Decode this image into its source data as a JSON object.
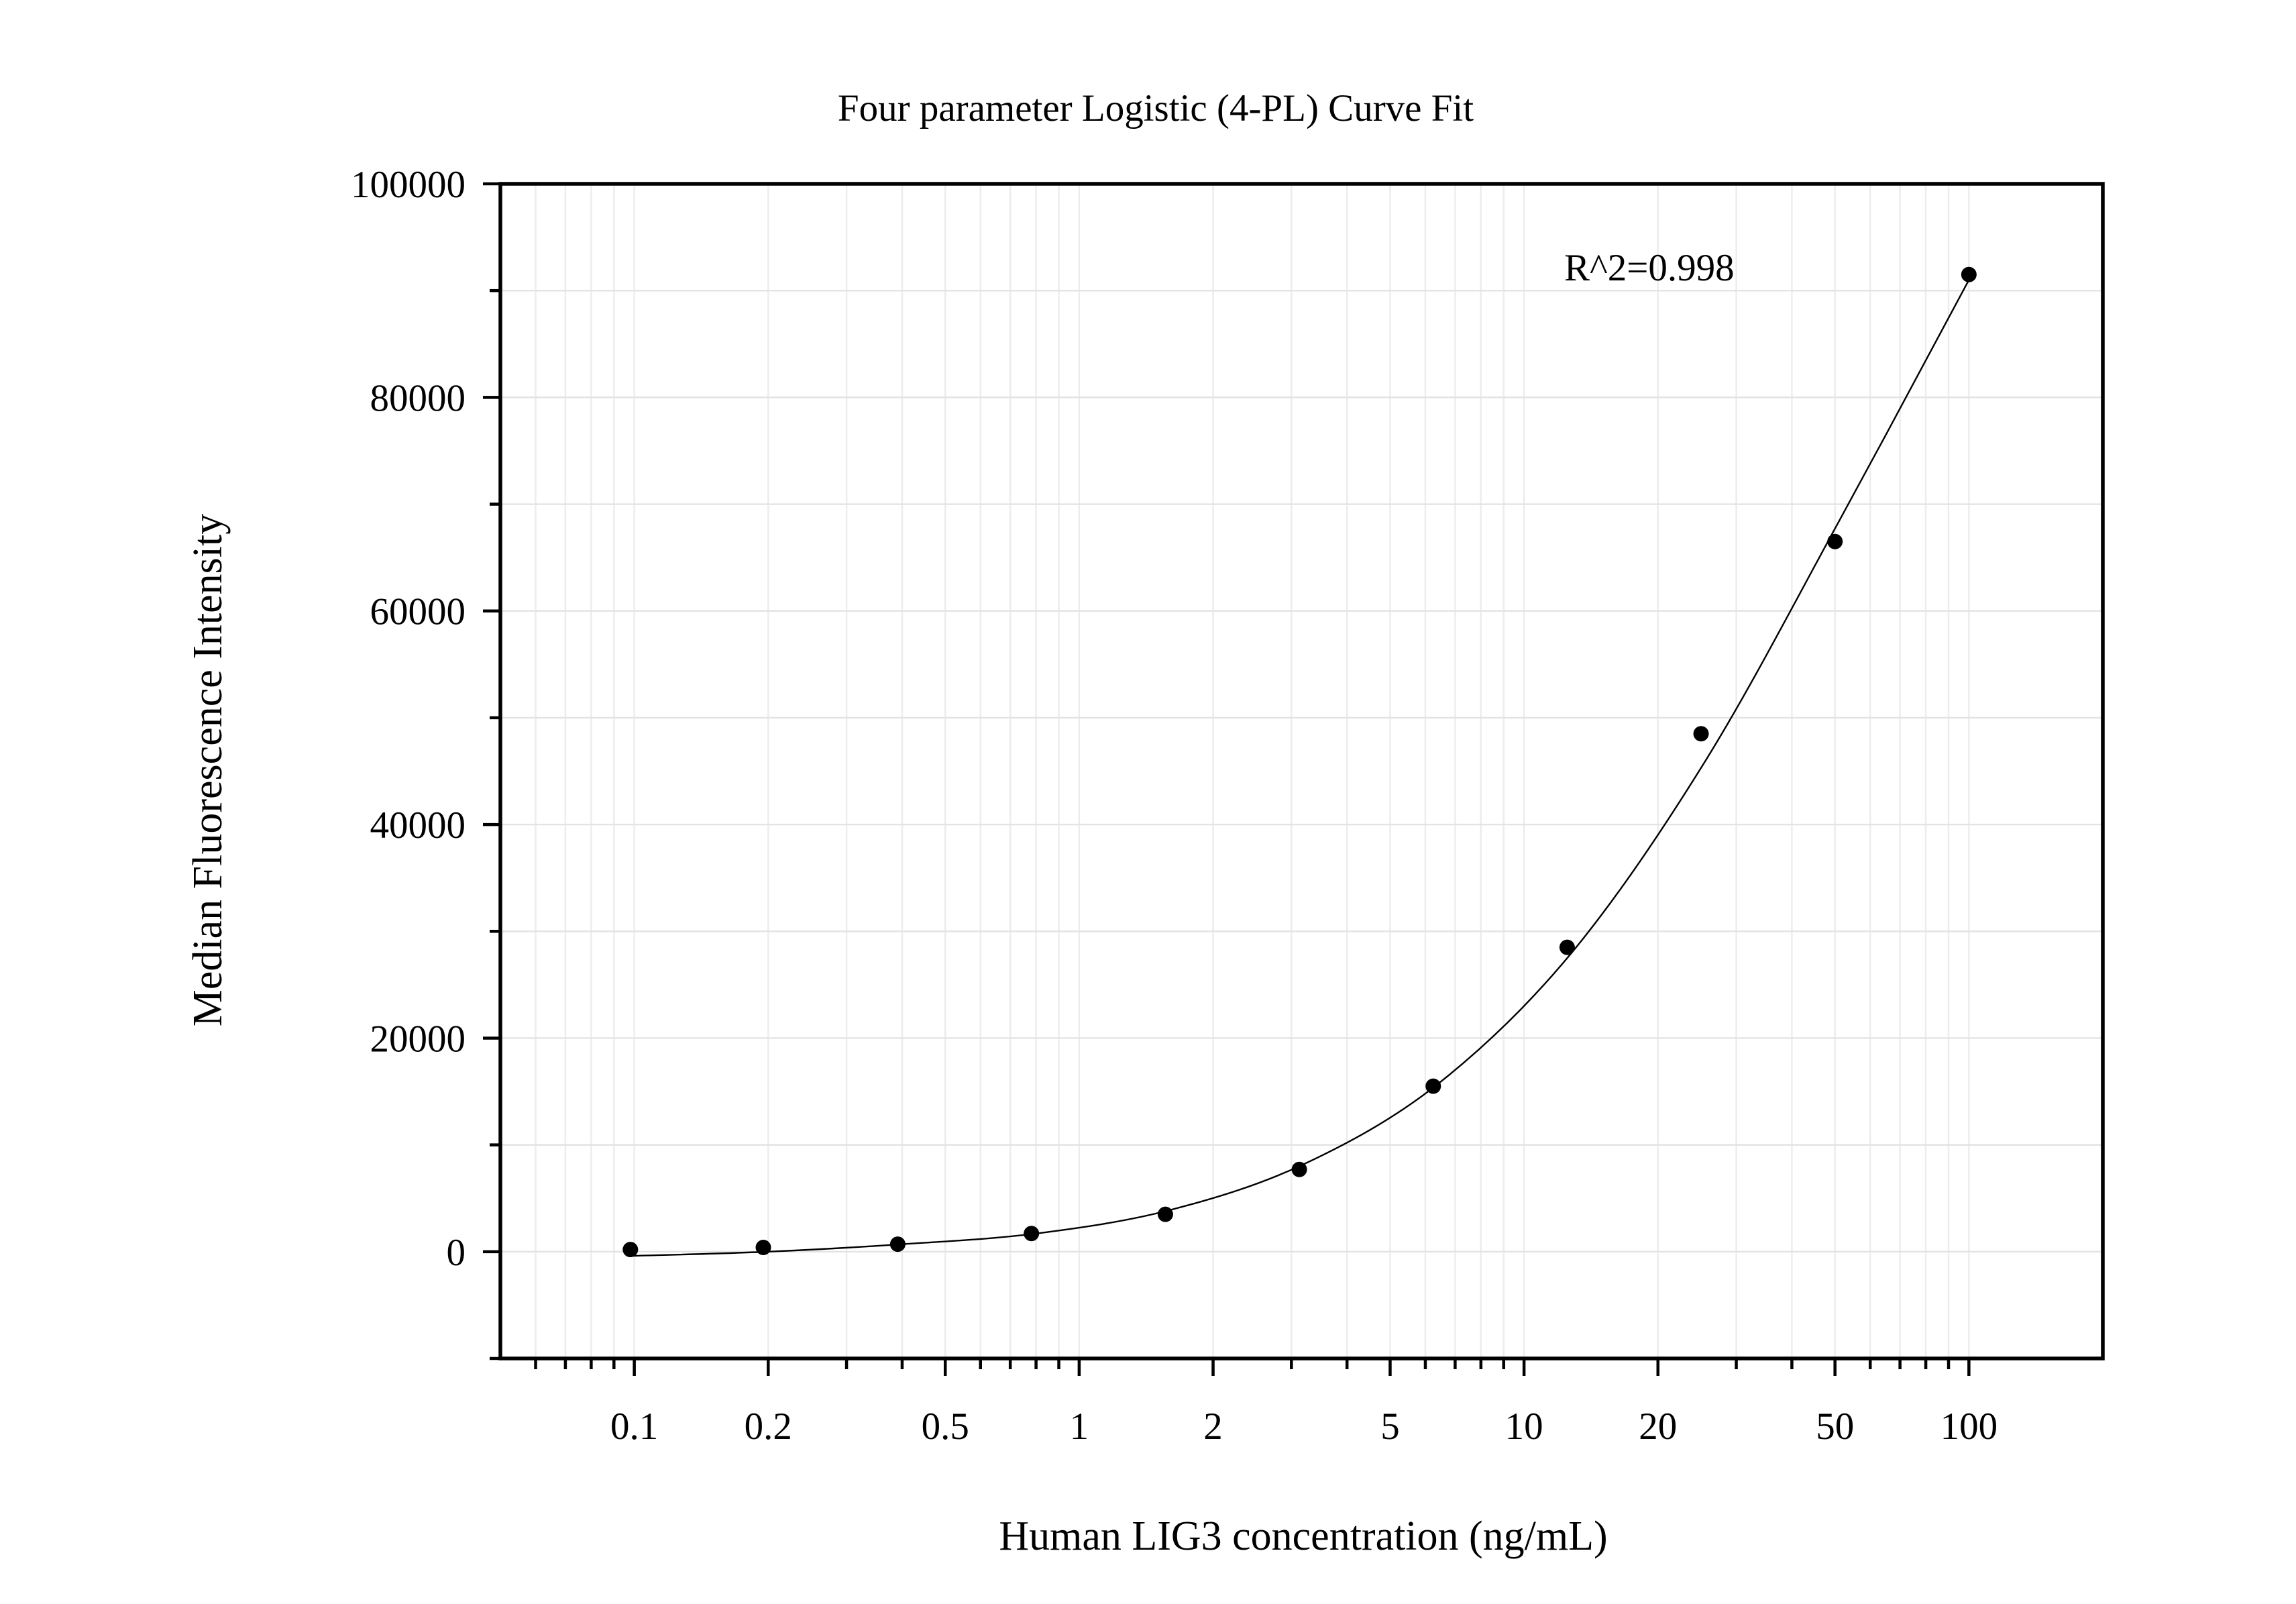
{
  "chart_data": {
    "type": "scatter",
    "title": "Four parameter Logistic (4-PL) Curve Fit",
    "xlabel": "Human LIG3 concentration (ng/mL)",
    "ylabel": "Median Fluorescence Intensity",
    "xscale": "log",
    "xlim": [
      0.05,
      200
    ],
    "ylim": [
      -10000,
      100000
    ],
    "grid": true,
    "legend": "none",
    "x_ticks": [
      {
        "value": 0.1,
        "label": "0.1"
      },
      {
        "value": 0.2,
        "label": "0.2"
      },
      {
        "value": 0.5,
        "label": "0.5"
      },
      {
        "value": 1,
        "label": "1"
      },
      {
        "value": 2,
        "label": "2"
      },
      {
        "value": 5,
        "label": "5"
      },
      {
        "value": 10,
        "label": "10"
      },
      {
        "value": 20,
        "label": "20"
      },
      {
        "value": 50,
        "label": "50"
      },
      {
        "value": 100,
        "label": "100"
      }
    ],
    "y_ticks": [
      {
        "value": 0,
        "label": "0"
      },
      {
        "value": 20000,
        "label": "20000"
      },
      {
        "value": 40000,
        "label": "40000"
      },
      {
        "value": 60000,
        "label": "60000"
      },
      {
        "value": 80000,
        "label": "80000"
      },
      {
        "value": 100000,
        "label": "100000"
      }
    ],
    "series": [
      {
        "points": [
          {
            "x": 0.098,
            "y": 200
          },
          {
            "x": 0.195,
            "y": 400
          },
          {
            "x": 0.391,
            "y": 700
          },
          {
            "x": 0.781,
            "y": 1700
          },
          {
            "x": 1.5625,
            "y": 3500
          },
          {
            "x": 3.125,
            "y": 7700
          },
          {
            "x": 6.25,
            "y": 15500
          },
          {
            "x": 12.5,
            "y": 28500
          },
          {
            "x": 25,
            "y": 48500
          },
          {
            "x": 50,
            "y": 66500
          },
          {
            "x": 100,
            "y": 91500
          }
        ]
      }
    ],
    "fit_curve": {
      "model": "4-PL",
      "points": [
        {
          "x": 0.098,
          "y": -400
        },
        {
          "x": 0.2,
          "y": 0
        },
        {
          "x": 0.4,
          "y": 700
        },
        {
          "x": 0.8,
          "y": 1700
        },
        {
          "x": 1.6,
          "y": 3900
        },
        {
          "x": 3.2,
          "y": 8200
        },
        {
          "x": 6.4,
          "y": 15700
        },
        {
          "x": 12.8,
          "y": 28000
        },
        {
          "x": 25.6,
          "y": 46000
        },
        {
          "x": 51.2,
          "y": 68500
        },
        {
          "x": 100,
          "y": 91000
        }
      ]
    },
    "annotations": [
      {
        "text": "R^2=0.998"
      }
    ]
  },
  "colors": {
    "background": "#ffffff",
    "points": "#000000",
    "curve": "#000000",
    "grid": "#e3e3e3"
  }
}
